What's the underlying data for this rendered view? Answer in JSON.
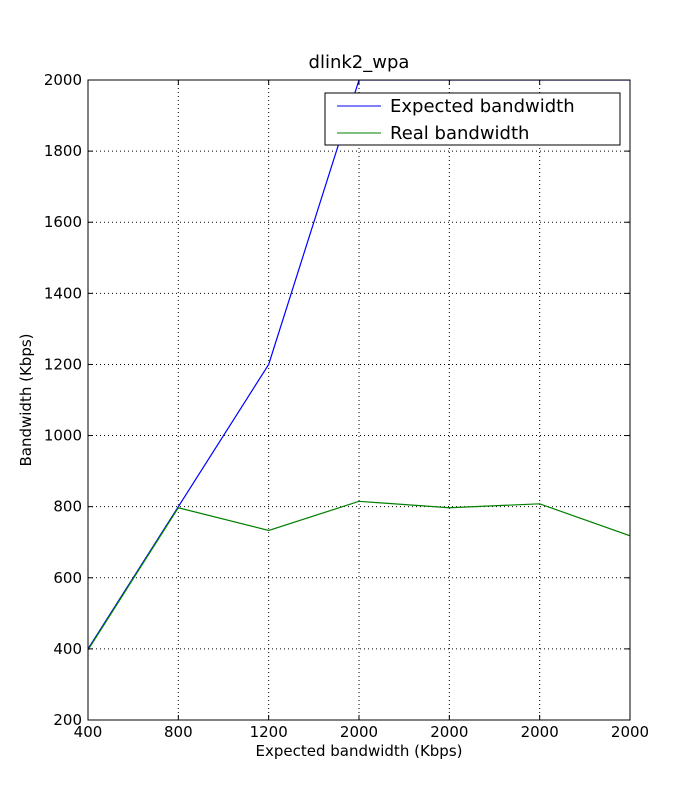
{
  "chart_data": {
    "type": "line",
    "title": "dlink2_wpa",
    "xlabel": "Expected bandwidth (Kbps)",
    "ylabel": "Bandwidth (Kbps)",
    "categories": [
      "400",
      "800",
      "1200",
      "2000",
      "2000",
      "2000",
      "2000"
    ],
    "ylim": [
      200,
      2000
    ],
    "yticks": [
      200,
      400,
      600,
      800,
      1000,
      1200,
      1400,
      1600,
      1800,
      2000
    ],
    "grid": true,
    "legend_position": "top-right",
    "series": [
      {
        "name": "Expected bandwidth",
        "color": "#0000ff",
        "values": [
          400,
          800,
          1200,
          2000,
          2000,
          2000,
          2000
        ]
      },
      {
        "name": "Real bandwidth",
        "color": "#008000",
        "values": [
          397,
          797,
          733,
          815,
          797,
          808,
          718
        ]
      }
    ]
  }
}
